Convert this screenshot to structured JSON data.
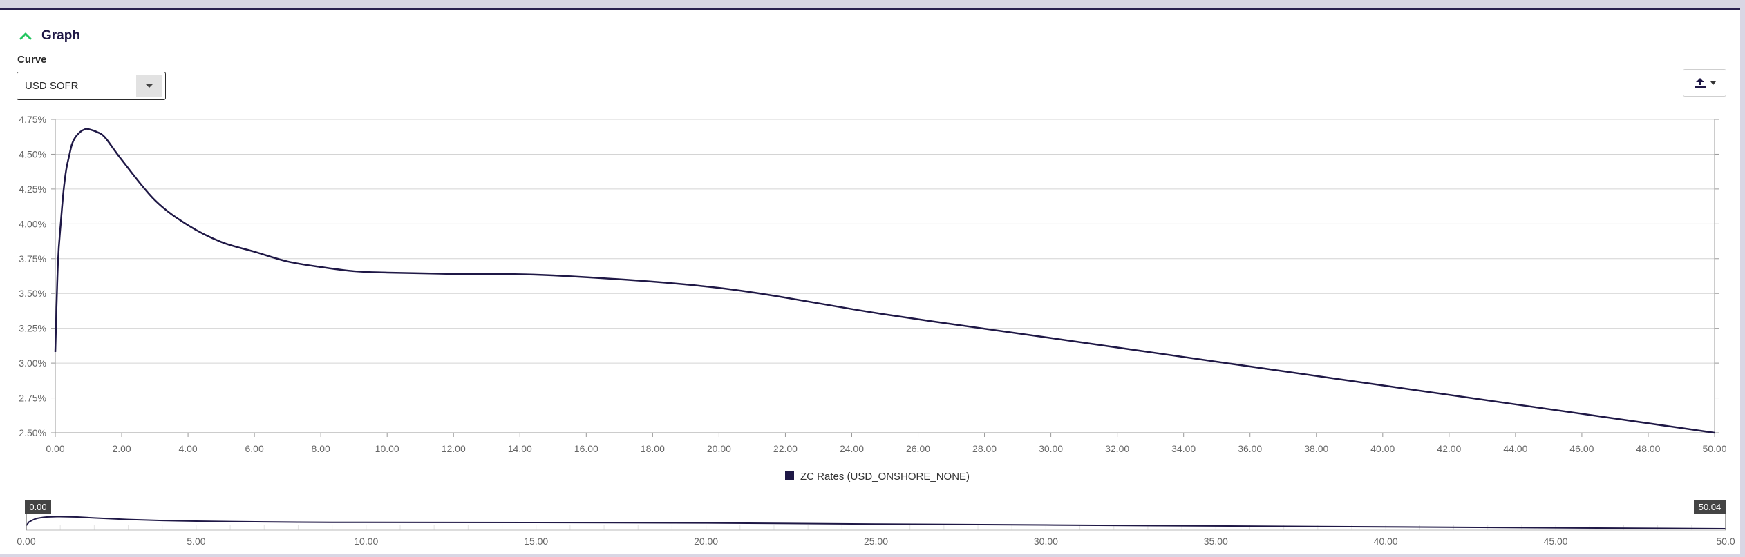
{
  "header": {
    "title": "Graph",
    "accent": "#22c55e"
  },
  "curve": {
    "label": "Curve",
    "selected": "USD SOFR"
  },
  "toolbar": {
    "export_icon": "upload-icon"
  },
  "chart_data": {
    "type": "line",
    "series": [
      {
        "name": "ZC Rates (USD_ONSHORE_NONE)",
        "color": "#1f1846",
        "x": [
          0,
          0.08,
          0.17,
          0.25,
          0.33,
          0.42,
          0.5,
          0.6,
          0.75,
          0.9,
          1.0,
          1.25,
          1.5,
          2.0,
          3.0,
          4.0,
          5.0,
          6.0,
          7.0,
          8.0,
          9.0,
          10.0,
          12.0,
          15.0,
          20.0,
          25.0,
          30.0,
          40.0,
          50.0
        ],
        "y": [
          3.08,
          3.72,
          4.02,
          4.24,
          4.39,
          4.49,
          4.57,
          4.62,
          4.66,
          4.68,
          4.68,
          4.66,
          4.62,
          4.46,
          4.17,
          3.99,
          3.87,
          3.8,
          3.73,
          3.69,
          3.66,
          3.65,
          3.64,
          3.63,
          3.54,
          3.35,
          3.18,
          2.84,
          2.5
        ]
      }
    ],
    "x_ticks": [
      "0.00",
      "2.00",
      "4.00",
      "6.00",
      "8.00",
      "10.00",
      "12.00",
      "14.00",
      "16.00",
      "18.00",
      "20.00",
      "22.00",
      "24.00",
      "26.00",
      "28.00",
      "30.00",
      "32.00",
      "34.00",
      "36.00",
      "38.00",
      "40.00",
      "42.00",
      "44.00",
      "46.00",
      "48.00",
      "50.00"
    ],
    "y_ticks": [
      "2.50%",
      "2.75%",
      "3.00%",
      "3.25%",
      "3.50%",
      "3.75%",
      "4.00%",
      "4.25%",
      "4.50%",
      "4.75%"
    ],
    "xlim": [
      0,
      50
    ],
    "ylim": [
      2.5,
      4.75
    ],
    "grid": true,
    "legend": "bottom-center",
    "navigator": {
      "x_ticks": [
        "0.00",
        "5.00",
        "10.00",
        "15.00",
        "20.00",
        "25.00",
        "30.00",
        "35.00",
        "40.00",
        "45.00",
        "50.0"
      ],
      "range_min_label": "0.00",
      "range_max_label": "50.04"
    }
  }
}
